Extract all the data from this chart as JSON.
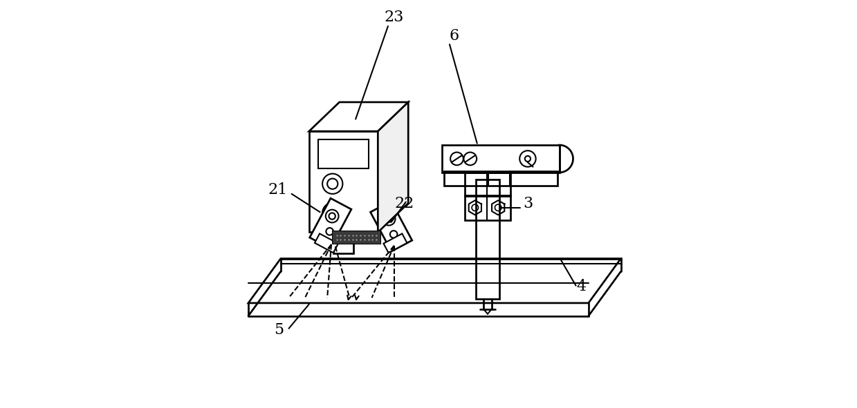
{
  "bg_color": "#ffffff",
  "line_color": "#000000",
  "line_width": 1.5,
  "label_fontsize": 16
}
